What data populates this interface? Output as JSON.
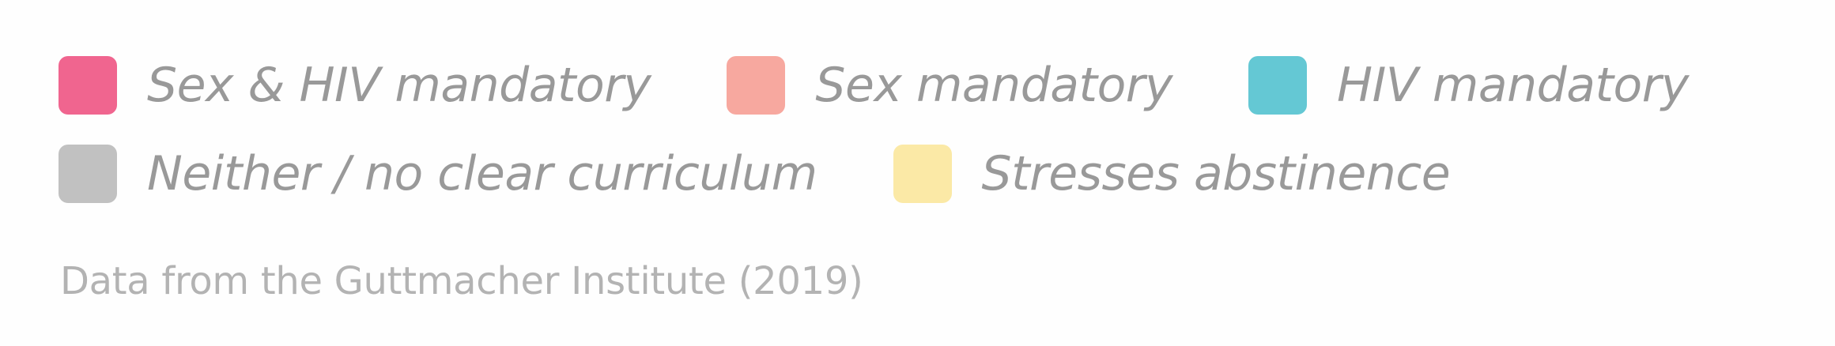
{
  "chart_data": {
    "type": "legend",
    "legend_entries": [
      {
        "label": "Sex & HIV mandatory",
        "color": "#f0658f"
      },
      {
        "label": "Sex mandatory",
        "color": "#f7a89f"
      },
      {
        "label": "HIV mandatory",
        "color": "#64c8d4"
      },
      {
        "label": "Neither / no clear curriculum",
        "color": "#c1c1c1"
      },
      {
        "label": "Stresses abstinence",
        "color": "#fbe9a6"
      }
    ],
    "source": "Data from the Guttmacher Institute (2019)"
  }
}
